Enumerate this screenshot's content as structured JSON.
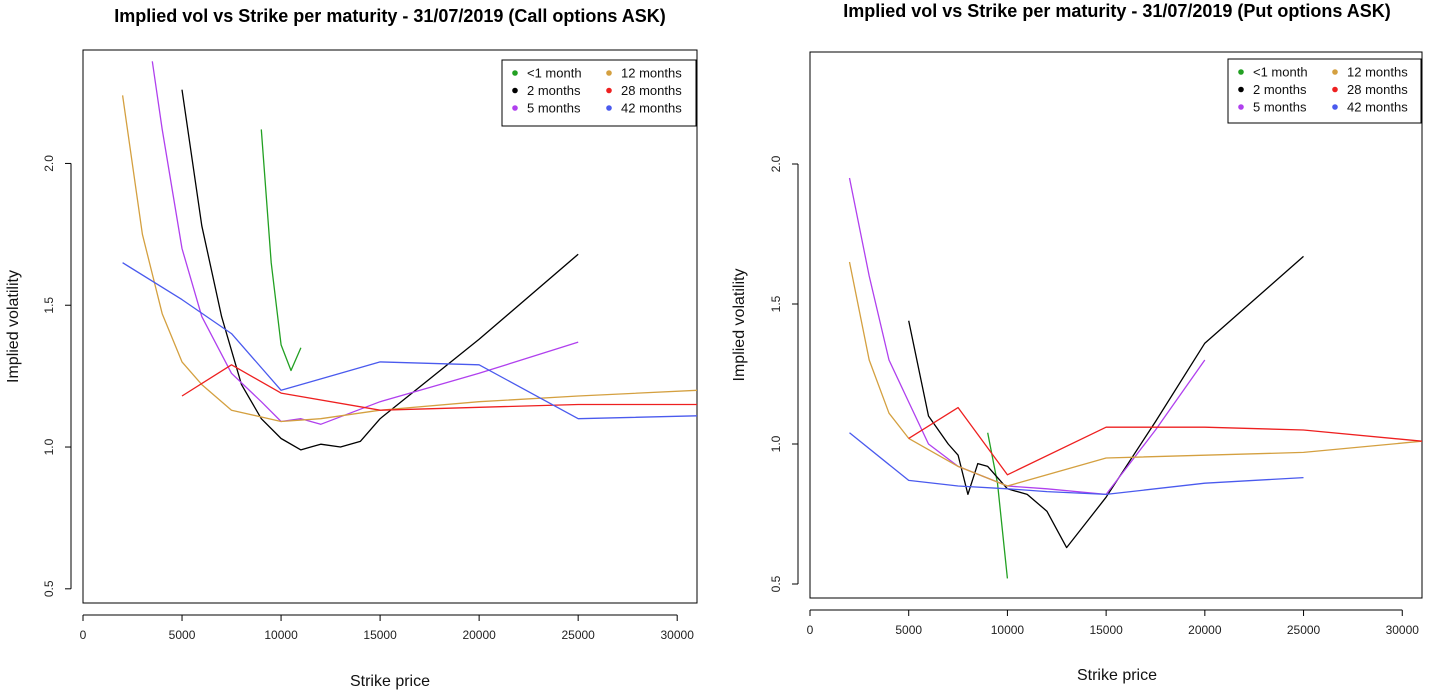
{
  "chart_data": [
    {
      "type": "line",
      "title": "Implied vol vs Strike per maturity - 31/07/2019 (Call options ASK)",
      "xlabel": "Strike price",
      "ylabel": "Implied volatility",
      "xlim": [
        0,
        31000
      ],
      "ylim": [
        0.45,
        2.4
      ],
      "xticks": [
        0,
        5000,
        10000,
        15000,
        20000,
        25000,
        30000
      ],
      "yticks": [
        0.5,
        1.0,
        1.5,
        2.0
      ],
      "ytick_labels": [
        "0.5",
        "1.0",
        "1.5",
        "2.0"
      ],
      "legend_position": "top-right",
      "series": [
        {
          "name": "<1 month",
          "color": "#22a022",
          "x": [
            9000,
            9500,
            10000,
            10500,
            11000
          ],
          "y": [
            2.12,
            1.65,
            1.36,
            1.27,
            1.35
          ]
        },
        {
          "name": "2 months",
          "color": "#000000",
          "x": [
            5000,
            6000,
            7000,
            8000,
            9000,
            10000,
            11000,
            11500,
            12000,
            13000,
            14000,
            15000,
            20000,
            25000
          ],
          "y": [
            2.26,
            1.78,
            1.46,
            1.22,
            1.1,
            1.03,
            0.99,
            1.0,
            1.01,
            1.0,
            1.02,
            1.1,
            1.38,
            1.68
          ]
        },
        {
          "name": "5 months",
          "color": "#b040ee",
          "x": [
            3500,
            4000,
            5000,
            6000,
            7500,
            9000,
            10000,
            11000,
            12000,
            15000,
            20000,
            25000
          ],
          "y": [
            2.36,
            2.12,
            1.7,
            1.46,
            1.26,
            1.16,
            1.09,
            1.1,
            1.08,
            1.16,
            1.26,
            1.37
          ]
        },
        {
          "name": "12 months",
          "color": "#d4a040",
          "x": [
            2000,
            3000,
            4000,
            5000,
            6000,
            7500,
            10000,
            12000,
            15000,
            20000,
            25000,
            31000
          ],
          "y": [
            2.24,
            1.75,
            1.47,
            1.3,
            1.22,
            1.13,
            1.09,
            1.1,
            1.13,
            1.16,
            1.18,
            1.2
          ]
        },
        {
          "name": "28 months",
          "color": "#ee2020",
          "x": [
            5000,
            7500,
            10000,
            15000,
            20000,
            25000,
            31000
          ],
          "y": [
            1.18,
            1.29,
            1.19,
            1.13,
            1.14,
            1.15,
            1.15
          ]
        },
        {
          "name": "42 months",
          "color": "#4a5aee",
          "x": [
            2000,
            5000,
            7500,
            10000,
            15000,
            20000,
            25000,
            31000
          ],
          "y": [
            1.65,
            1.52,
            1.4,
            1.2,
            1.3,
            1.29,
            1.1,
            1.11
          ]
        }
      ]
    },
    {
      "type": "line",
      "title": "Implied vol vs Strike per maturity - 31/07/2019 (Put options ASK)",
      "xlabel": "Strike price",
      "ylabel": "Implied volatility",
      "xlim": [
        0,
        31000
      ],
      "ylim": [
        0.45,
        2.4
      ],
      "xticks": [
        0,
        5000,
        10000,
        15000,
        20000,
        25000,
        30000
      ],
      "yticks": [
        0.5,
        1.0,
        1.5,
        2.0
      ],
      "ytick_labels": [
        "0.5",
        "1.0",
        "1.5",
        "2.0"
      ],
      "legend_position": "top-right",
      "series": [
        {
          "name": "<1 month",
          "color": "#22a022",
          "x": [
            9000,
            9500,
            10000
          ],
          "y": [
            1.04,
            0.86,
            0.52
          ]
        },
        {
          "name": "2 months",
          "color": "#000000",
          "x": [
            5000,
            6000,
            7000,
            7500,
            8000,
            8500,
            9000,
            10000,
            11000,
            12000,
            13000,
            14000,
            15000,
            17500,
            20000,
            25000
          ],
          "y": [
            1.44,
            1.1,
            1.0,
            0.96,
            0.82,
            0.93,
            0.92,
            0.84,
            0.82,
            0.76,
            0.63,
            0.72,
            0.81,
            1.08,
            1.36,
            1.67
          ]
        },
        {
          "name": "5 months",
          "color": "#b040ee",
          "x": [
            2000,
            3000,
            4000,
            5000,
            6000,
            7500,
            10000,
            12000,
            15000,
            17500,
            20000
          ],
          "y": [
            1.95,
            1.6,
            1.3,
            1.15,
            1.0,
            0.92,
            0.85,
            0.84,
            0.82,
            1.05,
            1.3
          ]
        },
        {
          "name": "12 months",
          "color": "#d4a040",
          "x": [
            2000,
            3000,
            4000,
            5000,
            7500,
            10000,
            15000,
            20000,
            25000,
            31000
          ],
          "y": [
            1.65,
            1.3,
            1.11,
            1.02,
            0.92,
            0.85,
            0.95,
            0.96,
            0.97,
            1.01
          ]
        },
        {
          "name": "28 months",
          "color": "#ee2020",
          "x": [
            5000,
            7500,
            10000,
            15000,
            20000,
            25000,
            31000
          ],
          "y": [
            1.02,
            1.13,
            0.89,
            1.06,
            1.06,
            1.05,
            1.01
          ]
        },
        {
          "name": "42 months",
          "color": "#4a5aee",
          "x": [
            2000,
            5000,
            7500,
            10000,
            12000,
            15000,
            20000,
            25000
          ],
          "y": [
            1.04,
            0.87,
            0.85,
            0.84,
            0.83,
            0.82,
            0.86,
            0.88
          ]
        }
      ]
    }
  ]
}
